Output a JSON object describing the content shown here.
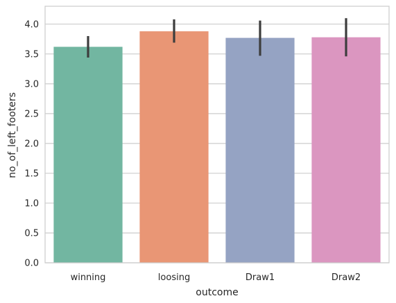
{
  "chart_data": {
    "type": "bar",
    "categories": [
      "winning",
      "loosing",
      "Draw1",
      "Draw2"
    ],
    "values": [
      3.62,
      3.88,
      3.77,
      3.78
    ],
    "error_low": [
      3.44,
      3.69,
      3.47,
      3.46
    ],
    "error_high": [
      3.8,
      4.08,
      4.06,
      4.1
    ],
    "colors": [
      "#72b6a1",
      "#e99675",
      "#95a3c3",
      "#db96c0"
    ],
    "errorbar_color": "#3d3d3d",
    "grid_color": "#cccccc",
    "xlabel": "outcome",
    "ylabel": "no_of_left_footers",
    "ylim": [
      0,
      4.3
    ],
    "yticks": [
      "0.0",
      "0.5",
      "1.0",
      "1.5",
      "2.0",
      "2.5",
      "3.0",
      "3.5",
      "4.0"
    ],
    "grid": "y"
  }
}
